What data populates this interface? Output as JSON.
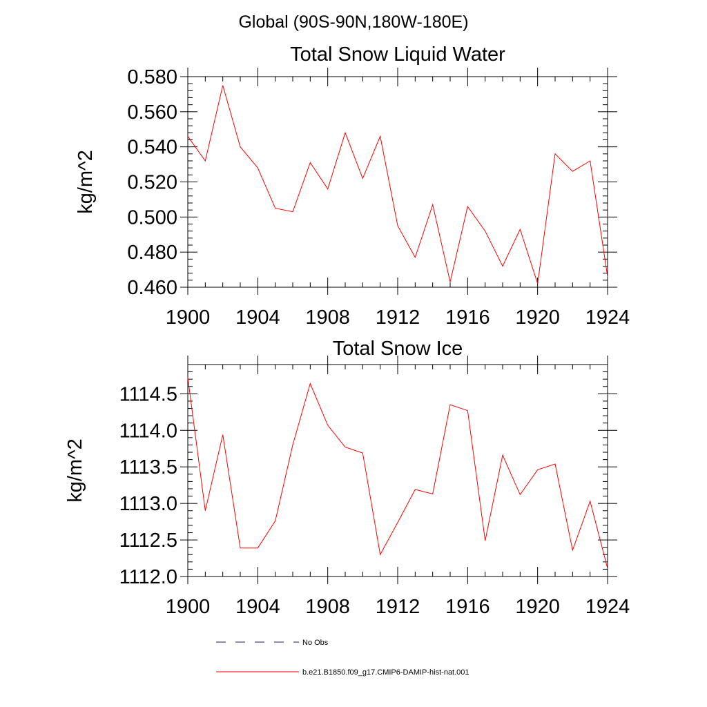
{
  "page": {
    "supertitle": "Global (90S-90N,180W-180E)"
  },
  "legend": {
    "placement": "bottom-center",
    "entries": [
      {
        "label": "No Obs",
        "color": "#1a1a66",
        "style": "dashed"
      },
      {
        "label": "b.e21.B1850.f09_g17.CMIP6-DAMIP-hist-nat.001",
        "color": "#ff0000",
        "style": "solid"
      }
    ]
  },
  "chart_data": [
    {
      "type": "line",
      "title": "Total Snow Liquid Water",
      "xlabel": "",
      "ylabel": "kg/m^2",
      "xlim": [
        1900,
        1924
      ],
      "ylim": [
        0.46,
        0.58
      ],
      "x_ticks": [
        1900,
        1904,
        1908,
        1912,
        1916,
        1920,
        1924
      ],
      "x_tick_labels": [
        "1900",
        "1904",
        "1908",
        "1912",
        "1916",
        "1920",
        "1924"
      ],
      "y_ticks": [
        0.46,
        0.48,
        0.5,
        0.52,
        0.54,
        0.56,
        0.58
      ],
      "y_tick_labels": [
        "0.460",
        "0.480",
        "0.500",
        "0.520",
        "0.540",
        "0.560",
        "0.580"
      ],
      "grid": false,
      "color": "#ff0000",
      "series": [
        {
          "x": [
            1900,
            1901,
            1902,
            1903,
            1904,
            1905,
            1906,
            1907,
            1908,
            1909,
            1910,
            1911,
            1912,
            1913,
            1914,
            1915,
            1916,
            1917,
            1918,
            1919,
            1920,
            1921,
            1922,
            1923,
            1924
          ],
          "values": [
            0.546,
            0.532,
            0.575,
            0.54,
            0.528,
            0.505,
            0.503,
            0.531,
            0.516,
            0.548,
            0.522,
            0.546,
            0.495,
            0.477,
            0.507,
            0.463,
            0.506,
            0.492,
            0.472,
            0.493,
            0.462,
            0.536,
            0.526,
            0.532,
            0.466
          ]
        }
      ]
    },
    {
      "type": "line",
      "title": "Total Snow Ice",
      "xlabel": "",
      "ylabel": "kg/m^2",
      "xlim": [
        1900,
        1924
      ],
      "ylim": [
        1112.0,
        1114.9
      ],
      "x_ticks": [
        1900,
        1904,
        1908,
        1912,
        1916,
        1920,
        1924
      ],
      "x_tick_labels": [
        "1900",
        "1904",
        "1908",
        "1912",
        "1916",
        "1920",
        "1924"
      ],
      "y_ticks": [
        1112.0,
        1112.5,
        1113.0,
        1113.5,
        1114.0,
        1114.5
      ],
      "y_tick_labels": [
        "1112.0",
        "1112.5",
        "1113.0",
        "1113.5",
        "1114.0",
        "1114.5"
      ],
      "grid": false,
      "color": "#ff0000",
      "series": [
        {
          "x": [
            1900,
            1901,
            1902,
            1903,
            1904,
            1905,
            1906,
            1907,
            1908,
            1909,
            1910,
            1911,
            1912,
            1913,
            1914,
            1915,
            1916,
            1917,
            1918,
            1919,
            1920,
            1921,
            1922,
            1923,
            1924
          ],
          "values": [
            1114.72,
            1112.9,
            1113.94,
            1112.39,
            1112.39,
            1112.76,
            1113.8,
            1114.64,
            1114.07,
            1113.77,
            1113.69,
            1112.3,
            1112.74,
            1113.19,
            1113.13,
            1114.35,
            1114.27,
            1112.49,
            1113.66,
            1113.12,
            1113.46,
            1113.54,
            1112.36,
            1113.03,
            1112.11
          ]
        }
      ]
    }
  ]
}
